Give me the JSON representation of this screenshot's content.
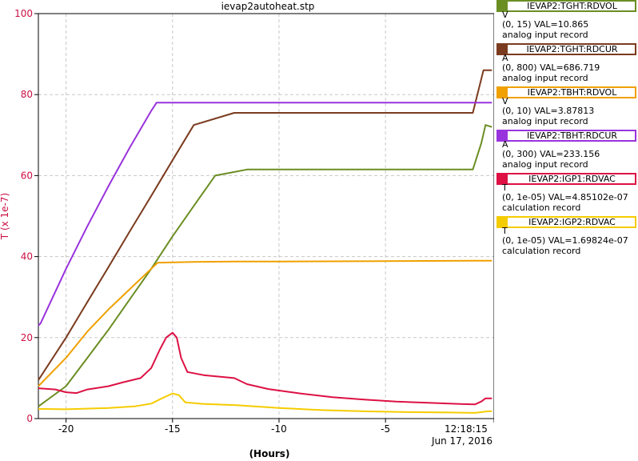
{
  "chart_data": {
    "type": "line",
    "title": "ievap2autoheat.stp",
    "ylabel": "T (x 1e-7)",
    "xlabel": "(Hours)",
    "xlim": [
      -21.3,
      0.1
    ],
    "ylim": [
      0,
      100
    ],
    "x_ticks": [
      -20,
      -15,
      -10,
      -5
    ],
    "x_tick_labels": [
      "-20",
      "-15",
      "-10",
      "-5"
    ],
    "end_time_label": "12:18:15",
    "end_date_label": "Jun 17, 2016",
    "y_ticks": [
      0,
      20,
      40,
      60,
      80,
      100
    ],
    "grid": true,
    "legend_position": "right",
    "series": [
      {
        "name": "IEVAP2:TGHT:RDVOL",
        "color": "#6b8e23",
        "unit": "V",
        "range": "(0, 15)",
        "val": "VAL=10.865",
        "record": "analog input record",
        "points": [
          [
            -21.3,
            3
          ],
          [
            -20,
            8
          ],
          [
            -19,
            15
          ],
          [
            -18,
            22
          ],
          [
            -17,
            29.5
          ],
          [
            -16,
            37
          ],
          [
            -15,
            45
          ],
          [
            -14,
            52.5
          ],
          [
            -13,
            60
          ],
          [
            -12.2,
            60.8
          ],
          [
            -11.5,
            61.5
          ],
          [
            -10,
            61.5
          ],
          [
            -8,
            61.5
          ],
          [
            -6,
            61.5
          ],
          [
            -4,
            61.5
          ],
          [
            -2,
            61.5
          ],
          [
            -1,
            61.5
          ],
          [
            -0.9,
            61.5
          ],
          [
            -0.5,
            68
          ],
          [
            -0.3,
            72.5
          ],
          [
            0.0,
            72
          ]
        ]
      },
      {
        "name": "IEVAP2:TGHT:RDCUR",
        "color": "#7b3b1f",
        "unit": "A",
        "range": "(0, 800)",
        "val": "VAL=686.719",
        "record": "analog input record",
        "points": [
          [
            -21.3,
            9.5
          ],
          [
            -20,
            20
          ],
          [
            -19,
            28.8
          ],
          [
            -18,
            37.5
          ],
          [
            -17,
            46.3
          ],
          [
            -16,
            55
          ],
          [
            -15,
            63.8
          ],
          [
            -14,
            72.5
          ],
          [
            -12.1,
            75.5
          ],
          [
            -10,
            75.5
          ],
          [
            -8,
            75.5
          ],
          [
            -6,
            75.5
          ],
          [
            -4,
            75.5
          ],
          [
            -2,
            75.5
          ],
          [
            -0.9,
            75.5
          ],
          [
            -0.4,
            86
          ],
          [
            0.0,
            86
          ]
        ]
      },
      {
        "name": "IEVAP2:TBHT:RDVOL",
        "color": "#f0a000",
        "unit": "V",
        "range": "(0, 10)",
        "val": "VAL=3.87813",
        "record": "analog input record",
        "points": [
          [
            -21.3,
            8
          ],
          [
            -20,
            15
          ],
          [
            -19,
            21.5
          ],
          [
            -18,
            27
          ],
          [
            -17,
            32
          ],
          [
            -16,
            37
          ],
          [
            -15.7,
            38.5
          ],
          [
            -14,
            38.7
          ],
          [
            -12,
            38.8
          ],
          [
            -10,
            38.8
          ],
          [
            -5,
            38.9
          ],
          [
            -1,
            39
          ],
          [
            0.0,
            39
          ]
        ]
      },
      {
        "name": "IEVAP2:TBHT:RDCUR",
        "color": "#9933dd",
        "unit": "A",
        "range": "(0, 300)",
        "val": "VAL=233.156",
        "record": "analog input record",
        "points": [
          [
            -21.3,
            23
          ],
          [
            -21.2,
            23.5
          ],
          [
            -20,
            37
          ],
          [
            -19,
            47.5
          ],
          [
            -18,
            57.5
          ],
          [
            -17,
            67
          ],
          [
            -16,
            76
          ],
          [
            -15.75,
            78
          ],
          [
            -12,
            78
          ],
          [
            -8,
            78
          ],
          [
            -4,
            78
          ],
          [
            -1,
            78
          ],
          [
            0.0,
            78
          ]
        ]
      },
      {
        "name": "IEVAP2:IGP1:RDVAC",
        "color": "#dd1144",
        "unit": "T",
        "range": "(0, 1e-05)",
        "val": "VAL=4.85102e-07",
        "record": "calculation record",
        "points": [
          [
            -21.3,
            7.5
          ],
          [
            -20.5,
            7.2
          ],
          [
            -20,
            6.5
          ],
          [
            -19.5,
            6.3
          ],
          [
            -19,
            7.2
          ],
          [
            -18,
            8
          ],
          [
            -17.3,
            9
          ],
          [
            -16.5,
            10
          ],
          [
            -16,
            12.5
          ],
          [
            -15.6,
            17
          ],
          [
            -15.3,
            20
          ],
          [
            -15,
            21.2
          ],
          [
            -14.8,
            20
          ],
          [
            -14.6,
            15
          ],
          [
            -14.3,
            11.5
          ],
          [
            -13.5,
            10.7
          ],
          [
            -12.5,
            10.2
          ],
          [
            -12.1,
            10
          ],
          [
            -11.5,
            8.5
          ],
          [
            -10.5,
            7.3
          ],
          [
            -9,
            6.2
          ],
          [
            -7.5,
            5.3
          ],
          [
            -6,
            4.7
          ],
          [
            -4.5,
            4.2
          ],
          [
            -3,
            3.9
          ],
          [
            -1.5,
            3.6
          ],
          [
            -0.8,
            3.5
          ],
          [
            -0.5,
            4.2
          ],
          [
            -0.3,
            5
          ],
          [
            0.0,
            5
          ]
        ]
      },
      {
        "name": "IEVAP2:IGP2:RDVAC",
        "color": "#f5cc00",
        "unit": "T",
        "range": "(0, 1e-05)",
        "val": "VAL=1.69824e-07",
        "record": "calculation record",
        "points": [
          [
            -21.3,
            2.4
          ],
          [
            -20,
            2.3
          ],
          [
            -18,
            2.6
          ],
          [
            -16.8,
            3
          ],
          [
            -16,
            3.7
          ],
          [
            -15.5,
            5
          ],
          [
            -15,
            6.2
          ],
          [
            -14.7,
            5.8
          ],
          [
            -14.4,
            4
          ],
          [
            -13.5,
            3.6
          ],
          [
            -12,
            3.3
          ],
          [
            -10,
            2.6
          ],
          [
            -8,
            2.1
          ],
          [
            -6,
            1.8
          ],
          [
            -4,
            1.6
          ],
          [
            -2,
            1.5
          ],
          [
            -0.8,
            1.4
          ],
          [
            -0.5,
            1.6
          ],
          [
            -0.2,
            1.8
          ],
          [
            0.0,
            1.8
          ]
        ]
      }
    ]
  }
}
